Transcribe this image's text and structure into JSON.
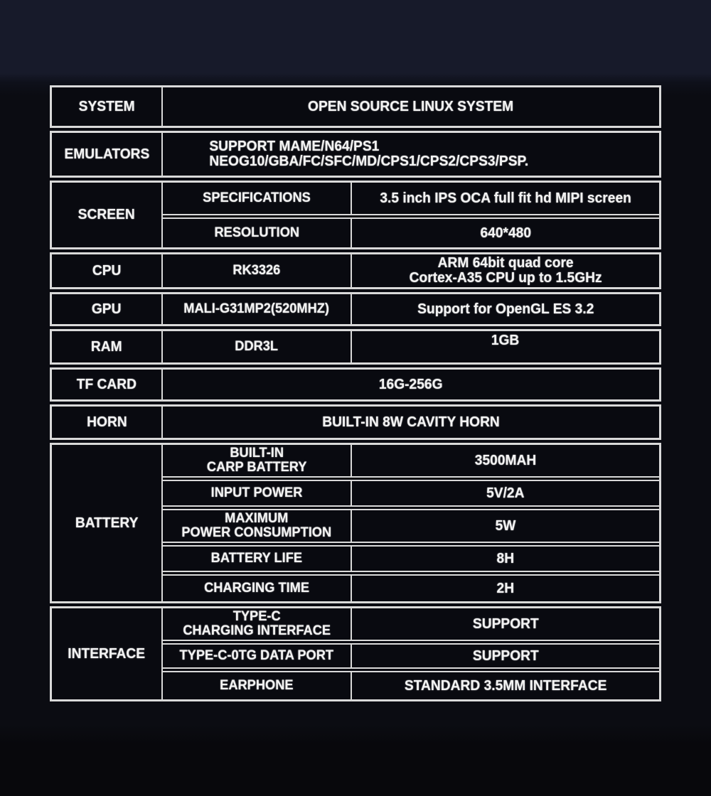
{
  "colors": {
    "border": "#d9d9d9",
    "text": "#f3f3f3",
    "cell_bg": "#090a10",
    "page_top_bg": "#171a2a",
    "page_bottom_bg": "#08080c"
  },
  "table": {
    "sections": [
      {
        "label": "SYSTEM",
        "rows": [
          {
            "value": "OPEN SOURCE LINUX SYSTEM",
            "span": true
          }
        ]
      },
      {
        "label": "EMULATORS",
        "rows": [
          {
            "value": "SUPPORT MAME/N64/PS1\nNEOG10/GBA/FC/SFC/MD/CPS1/CPS2/CPS3/PSP.",
            "span": true,
            "align": "left"
          }
        ]
      },
      {
        "label": "SCREEN",
        "rows": [
          {
            "key": "SPECIFICATIONS",
            "value": "3.5 inch IPS OCA full fit hd MIPI screen"
          },
          {
            "key": "RESOLUTION",
            "value": "640*480"
          }
        ]
      },
      {
        "label": "CPU",
        "rows": [
          {
            "key": "RK3326",
            "value": "ARM 64bit quad core\nCortex-A35 CPU up to 1.5GHz"
          }
        ]
      },
      {
        "label": "GPU",
        "rows": [
          {
            "key": "MALI-G31MP2(520MHZ)",
            "value": "Support for OpenGL ES 3.2"
          }
        ]
      },
      {
        "label": "RAM",
        "rows": [
          {
            "key": "DDR3L",
            "value": "1GB",
            "vtop": true
          }
        ]
      },
      {
        "label": "TF CARD",
        "rows": [
          {
            "value": "16G-256G",
            "span": true
          }
        ]
      },
      {
        "label": "HORN",
        "rows": [
          {
            "value": "BUILT-IN 8W CAVITY HORN",
            "span": true
          }
        ]
      },
      {
        "label": "BATTERY",
        "rows": [
          {
            "key": "BUILT-IN\nCARP BATTERY",
            "value": "3500MAH"
          },
          {
            "key": "INPUT POWER",
            "value": "5V/2A"
          },
          {
            "key": "MAXIMUM\nPOWER CONSUMPTION",
            "value": "5W"
          },
          {
            "key": "BATTERY LIFE",
            "value": "8H"
          },
          {
            "key": "CHARGING TIME",
            "value": "2H"
          }
        ]
      },
      {
        "label": "INTERFACE",
        "rows": [
          {
            "key": "TYPE-C\nCHARGING INTERFACE",
            "value": "SUPPORT"
          },
          {
            "key": "TYPE-C-0TG DATA PORT",
            "value": "SUPPORT"
          },
          {
            "key": "EARPHONE",
            "value": "STANDARD 3.5MM INTERFACE"
          }
        ]
      }
    ]
  }
}
